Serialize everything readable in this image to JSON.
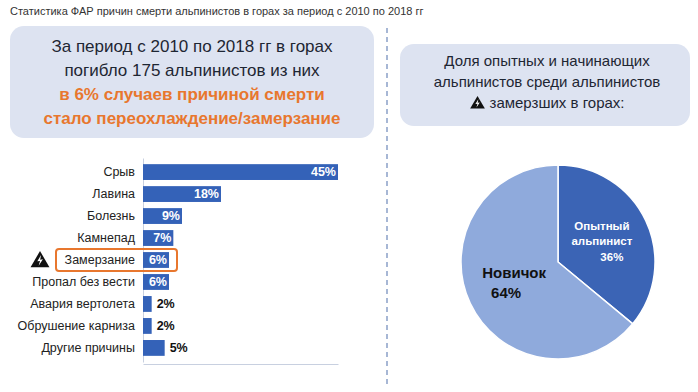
{
  "title": "Статистика ФАР причин смерти альпинистов в горах за период с 2010 по 2018 гг",
  "chart_data": [
    {
      "type": "bar",
      "title": [
        "За период с 2010 по 2018 гг в горах",
        "погибло 175 альпинистов из них"
      ],
      "subtitle": [
        "в 6% случаев причиной смерти",
        "стало переохлаждение/замерзание"
      ],
      "categories": [
        "Срыв",
        "Лавина",
        "Болезнь",
        "Камнепад",
        "Замерзание",
        "Пропал без вести",
        "Авария вертолета",
        "Обрушение карниза",
        "Другие причины"
      ],
      "values": [
        45,
        18,
        9,
        7,
        6,
        6,
        2,
        2,
        5
      ],
      "value_labels": [
        "45%",
        "18%",
        "9%",
        "7%",
        "6%",
        "6%",
        "2%",
        "2%",
        "5%"
      ],
      "color": "#3462b8",
      "orientation": "horizontal",
      "xlim": [
        0,
        45
      ],
      "data_labels": true,
      "tick_labels": "y"
    },
    {
      "type": "pie",
      "title": [
        "Доля опытных и начинающих",
        "альпинистов среди альпинистов",
        "замерзших в горах:"
      ],
      "categories": [
        "Опытный альпинист",
        "Новичок"
      ],
      "values": [
        36,
        64
      ],
      "value_labels": [
        "36%",
        "64%"
      ],
      "colors": [
        "#3b64b5",
        "#8faadc"
      ],
      "data_labels": true
    }
  ]
}
